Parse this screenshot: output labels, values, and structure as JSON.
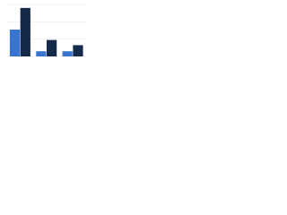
{
  "chart_data": {
    "type": "bar",
    "categories": [
      null,
      null,
      null
    ],
    "series": [
      {
        "color": "#3a74d1",
        "values": [
          31,
          6,
          6
        ]
      },
      {
        "color": "#152a4a",
        "values": [
          56,
          19,
          13
        ]
      }
    ],
    "ylim": [
      0,
      60
    ],
    "yticks": [
      0,
      20,
      40,
      60
    ],
    "grid": true
  }
}
